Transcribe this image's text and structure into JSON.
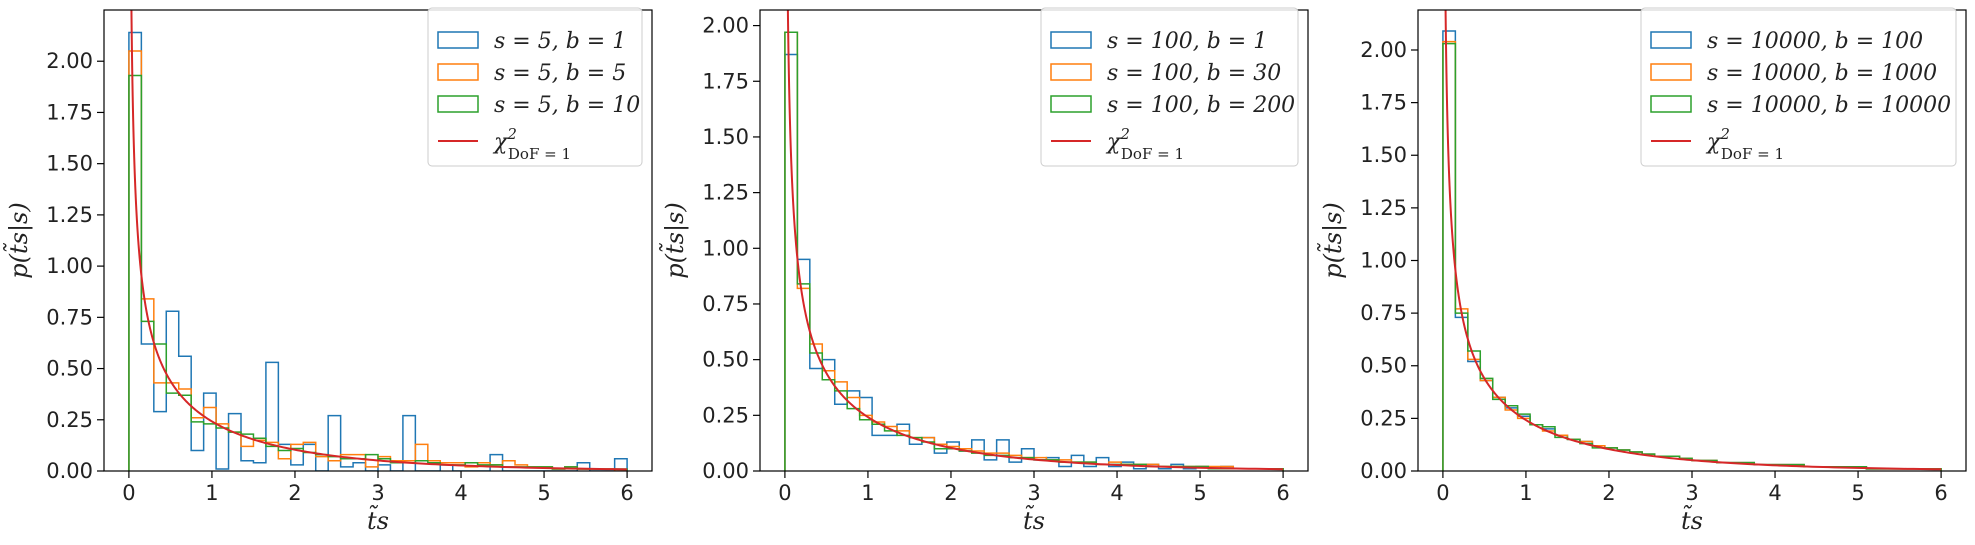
{
  "figure": {
    "background": "#ffffff"
  },
  "colors": {
    "blue": "#1f77b4",
    "orange": "#ff7f0e",
    "green": "#2ca02c",
    "red": "#d62728"
  },
  "chart_data": [
    {
      "type": "histogram",
      "xlabel": "t̃s",
      "ylabel": "p(t̃s|s)",
      "xlim": [
        -0.3,
        6.3
      ],
      "ylim": [
        0,
        2.25
      ],
      "xticks": [
        0,
        1,
        2,
        3,
        4,
        5,
        6
      ],
      "yticks": [
        0,
        0.25,
        0.5,
        0.75,
        1.0,
        1.25,
        1.5,
        1.75,
        2.0
      ],
      "ytick_labels": [
        "0.00",
        "0.25",
        "0.50",
        "0.75",
        "1.00",
        "1.25",
        "1.50",
        "1.75",
        "2.00"
      ],
      "bins": {
        "start": 0,
        "width": 0.15,
        "count": 40
      },
      "legend": {
        "location": "upper right"
      },
      "series": [
        {
          "name": "s = 5, b = 1",
          "color": "#1f77b4",
          "values": [
            2.14,
            0.62,
            0.29,
            0.78,
            0.56,
            0.1,
            0.38,
            0.01,
            0.28,
            0.05,
            0.04,
            0.53,
            0.13,
            0.03,
            0.13,
            0.0,
            0.27,
            0.02,
            0.04,
            0.0,
            0.03,
            0.0,
            0.27,
            0.0,
            0.0,
            0.03,
            0.0,
            0.0,
            0.0,
            0.08,
            0.0,
            0.0,
            0.0,
            0.0,
            0.0,
            0.0,
            0.04,
            0.0,
            0.0,
            0.06
          ]
        },
        {
          "name": "s = 5, b = 5",
          "color": "#ff7f0e",
          "values": [
            2.05,
            0.84,
            0.43,
            0.43,
            0.4,
            0.26,
            0.31,
            0.23,
            0.19,
            0.12,
            0.15,
            0.14,
            0.06,
            0.13,
            0.14,
            0.07,
            0.05,
            0.08,
            0.08,
            0.02,
            0.07,
            0.05,
            0.05,
            0.13,
            0.05,
            0.04,
            0.04,
            0.02,
            0.04,
            0.03,
            0.05,
            0.03,
            0.02,
            0.02,
            0.01,
            0.02,
            0.01,
            0.01,
            0.01,
            0.0
          ]
        },
        {
          "name": "s = 5, b = 10",
          "color": "#2ca02c",
          "values": [
            1.93,
            0.73,
            0.62,
            0.38,
            0.37,
            0.24,
            0.23,
            0.21,
            0.19,
            0.18,
            0.16,
            0.12,
            0.1,
            0.11,
            0.09,
            0.08,
            0.07,
            0.06,
            0.06,
            0.08,
            0.06,
            0.04,
            0.04,
            0.05,
            0.04,
            0.03,
            0.03,
            0.04,
            0.03,
            0.03,
            0.02,
            0.02,
            0.02,
            0.02,
            0.01,
            0.02,
            0.01,
            0.01,
            0.01,
            0.01
          ]
        },
        {
          "name": "χ²DoF = 1",
          "color": "#d62728",
          "kind": "line",
          "function": "chi2_pdf_dof1",
          "x_range": [
            0.02,
            6.0
          ]
        }
      ],
      "legend_entries": [
        {
          "label": "s = 5, b = 1",
          "kind": "patch",
          "color": "#1f77b4"
        },
        {
          "label": "s = 5, b = 5",
          "kind": "patch",
          "color": "#ff7f0e"
        },
        {
          "label": "s = 5, b = 10",
          "kind": "patch",
          "color": "#2ca02c"
        },
        {
          "label": "χ",
          "sup": "2",
          "sub": "DoF = 1",
          "kind": "line",
          "color": "#d62728"
        }
      ]
    },
    {
      "type": "histogram",
      "xlabel": "t̃s",
      "ylabel": "p(t̃s|s)",
      "xlim": [
        -0.3,
        6.3
      ],
      "ylim": [
        0,
        2.07
      ],
      "xticks": [
        0,
        1,
        2,
        3,
        4,
        5,
        6
      ],
      "yticks": [
        0,
        0.25,
        0.5,
        0.75,
        1.0,
        1.25,
        1.5,
        1.75,
        2.0
      ],
      "ytick_labels": [
        "0.00",
        "0.25",
        "0.50",
        "0.75",
        "1.00",
        "1.25",
        "1.50",
        "1.75",
        "2.00"
      ],
      "bins": {
        "start": 0,
        "width": 0.15,
        "count": 40
      },
      "legend": {
        "location": "upper right"
      },
      "series": [
        {
          "name": "s = 100, b = 1",
          "color": "#1f77b4",
          "values": [
            1.87,
            0.95,
            0.46,
            0.5,
            0.3,
            0.36,
            0.33,
            0.16,
            0.16,
            0.21,
            0.12,
            0.15,
            0.08,
            0.13,
            0.09,
            0.14,
            0.05,
            0.14,
            0.04,
            0.1,
            0.05,
            0.06,
            0.02,
            0.07,
            0.02,
            0.06,
            0.02,
            0.04,
            0.01,
            0.03,
            0.01,
            0.03,
            0.01,
            0.02,
            0.01,
            0.02,
            0.01,
            0.01,
            0.01,
            0.01
          ]
        },
        {
          "name": "s = 100, b = 30",
          "color": "#ff7f0e",
          "values": [
            1.97,
            0.82,
            0.57,
            0.45,
            0.4,
            0.33,
            0.25,
            0.22,
            0.2,
            0.18,
            0.15,
            0.15,
            0.12,
            0.11,
            0.1,
            0.09,
            0.08,
            0.08,
            0.07,
            0.06,
            0.06,
            0.05,
            0.05,
            0.04,
            0.04,
            0.03,
            0.04,
            0.03,
            0.03,
            0.03,
            0.02,
            0.02,
            0.02,
            0.02,
            0.02,
            0.02,
            0.01,
            0.01,
            0.01,
            0.01
          ]
        },
        {
          "name": "s = 100, b = 200",
          "color": "#2ca02c",
          "values": [
            1.97,
            0.84,
            0.53,
            0.41,
            0.36,
            0.28,
            0.23,
            0.21,
            0.18,
            0.16,
            0.15,
            0.13,
            0.1,
            0.1,
            0.09,
            0.08,
            0.07,
            0.07,
            0.06,
            0.06,
            0.05,
            0.05,
            0.04,
            0.04,
            0.04,
            0.03,
            0.03,
            0.03,
            0.03,
            0.02,
            0.02,
            0.02,
            0.02,
            0.02,
            0.01,
            0.01,
            0.01,
            0.01,
            0.01,
            0.01
          ]
        },
        {
          "name": "χ²DoF = 1",
          "color": "#d62728",
          "kind": "line",
          "function": "chi2_pdf_dof1",
          "x_range": [
            0.02,
            6.0
          ]
        }
      ],
      "legend_entries": [
        {
          "label": "s = 100, b = 1",
          "kind": "patch",
          "color": "#1f77b4"
        },
        {
          "label": "s = 100, b = 30",
          "kind": "patch",
          "color": "#ff7f0e"
        },
        {
          "label": "s = 100, b = 200",
          "kind": "patch",
          "color": "#2ca02c"
        },
        {
          "label": "χ",
          "sup": "2",
          "sub": "DoF = 1",
          "kind": "line",
          "color": "#d62728"
        }
      ]
    },
    {
      "type": "histogram",
      "xlabel": "t̃s",
      "ylabel": "p(t̃s|s)",
      "xlim": [
        -0.3,
        6.3
      ],
      "ylim": [
        0,
        2.19
      ],
      "xticks": [
        0,
        1,
        2,
        3,
        4,
        5,
        6
      ],
      "yticks": [
        0,
        0.25,
        0.5,
        0.75,
        1.0,
        1.25,
        1.5,
        1.75,
        2.0
      ],
      "ytick_labels": [
        "0.00",
        "0.25",
        "0.50",
        "0.75",
        "1.00",
        "1.25",
        "1.50",
        "1.75",
        "2.00"
      ],
      "bins": {
        "start": 0,
        "width": 0.15,
        "count": 40
      },
      "legend": {
        "location": "upper right"
      },
      "series": [
        {
          "name": "s = 10000, b = 100",
          "color": "#1f77b4",
          "values": [
            2.09,
            0.73,
            0.52,
            0.43,
            0.35,
            0.3,
            0.26,
            0.22,
            0.2,
            0.17,
            0.15,
            0.14,
            0.12,
            0.11,
            0.1,
            0.09,
            0.08,
            0.07,
            0.07,
            0.06,
            0.05,
            0.05,
            0.04,
            0.04,
            0.04,
            0.03,
            0.03,
            0.03,
            0.03,
            0.02,
            0.02,
            0.02,
            0.02,
            0.02,
            0.01,
            0.01,
            0.01,
            0.01,
            0.01,
            0.01
          ]
        },
        {
          "name": "s = 10000, b = 1000",
          "color": "#ff7f0e",
          "values": [
            2.04,
            0.77,
            0.53,
            0.43,
            0.35,
            0.29,
            0.25,
            0.22,
            0.19,
            0.17,
            0.15,
            0.14,
            0.12,
            0.11,
            0.1,
            0.09,
            0.08,
            0.07,
            0.07,
            0.06,
            0.05,
            0.05,
            0.04,
            0.04,
            0.04,
            0.03,
            0.03,
            0.03,
            0.03,
            0.02,
            0.02,
            0.02,
            0.02,
            0.02,
            0.01,
            0.01,
            0.01,
            0.01,
            0.01,
            0.01
          ]
        },
        {
          "name": "s = 10000, b = 10000",
          "color": "#2ca02c",
          "values": [
            2.03,
            0.75,
            0.57,
            0.44,
            0.34,
            0.31,
            0.27,
            0.22,
            0.21,
            0.16,
            0.15,
            0.13,
            0.11,
            0.11,
            0.1,
            0.09,
            0.08,
            0.07,
            0.07,
            0.06,
            0.05,
            0.05,
            0.04,
            0.04,
            0.04,
            0.03,
            0.03,
            0.03,
            0.03,
            0.02,
            0.02,
            0.02,
            0.02,
            0.02,
            0.01,
            0.01,
            0.01,
            0.01,
            0.01,
            0.01
          ]
        },
        {
          "name": "χ²DoF = 1",
          "color": "#d62728",
          "kind": "line",
          "function": "chi2_pdf_dof1",
          "x_range": [
            0.02,
            6.0
          ]
        }
      ],
      "legend_entries": [
        {
          "label": "s = 10000, b = 100",
          "kind": "patch",
          "color": "#1f77b4"
        },
        {
          "label": "s = 10000, b = 1000",
          "kind": "patch",
          "color": "#ff7f0e"
        },
        {
          "label": "s = 10000, b = 10000",
          "kind": "patch",
          "color": "#2ca02c"
        },
        {
          "label": "χ",
          "sup": "2",
          "sub": "DoF = 1",
          "kind": "line",
          "color": "#d62728"
        }
      ]
    }
  ]
}
